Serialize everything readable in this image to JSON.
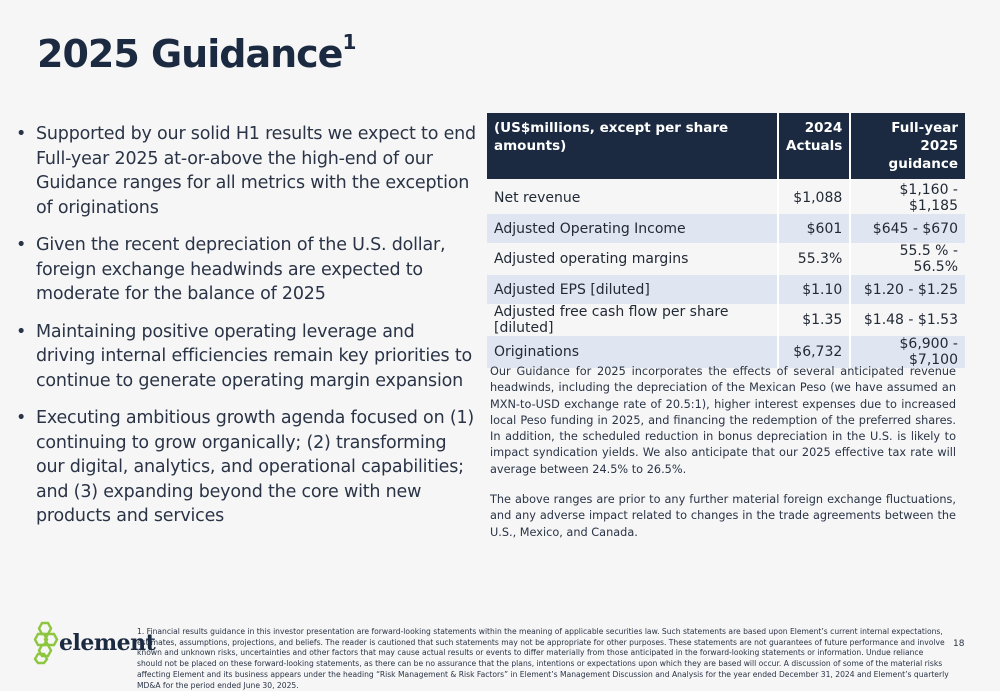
{
  "title": {
    "text": "2025 Guidance",
    "sup": "1"
  },
  "bullets": [
    "Supported by our solid H1 results we expect to end Full-year 2025 at-or-above the high-end of our Guidance ranges for all metrics with the exception of originations",
    "Given the recent depreciation of the U.S. dollar, foreign exchange headwinds are expected to moderate for the balance of 2025",
    "Maintaining positive operating leverage and driving internal efficiencies remain key priorities to continue to generate operating margin expansion",
    "Executing ambitious growth agenda focused on (1) continuing to grow organically; (2) transforming our digital, analytics, and operational capabilities; and (3) expanding beyond the core with new products and services"
  ],
  "bullet_glyph": "•",
  "table": {
    "headers": [
      "(US$millions, except per share amounts)",
      "2024 Actuals",
      "Full-year 2025 guidance"
    ],
    "rows": [
      [
        "Net revenue",
        "$1,088",
        "$1,160 - $1,185"
      ],
      [
        "Adjusted Operating Income",
        "$601",
        "$645 - $670"
      ],
      [
        "Adjusted operating margins",
        "55.3%",
        "55.5 % - 56.5%"
      ],
      [
        "Adjusted EPS [diluted]",
        "$1.10",
        "$1.20 - $1.25"
      ],
      [
        "Adjusted free cash flow per share [diluted]",
        "$1.35",
        "$1.48 - $1.53"
      ],
      [
        "Originations",
        "$6,732",
        "$6,900 - $7,100"
      ]
    ]
  },
  "notes": [
    "Our Guidance for 2025 incorporates the effects of several anticipated revenue headwinds, including the depreciation of the Mexican Peso (we have assumed an MXN-to-USD exchange rate of 20.5:1), higher interest expenses due to increased local Peso funding in 2025, and financing the redemption of the preferred shares. In addition, the scheduled reduction in bonus depreciation in the U.S. is likely to impact syndication yields. We also anticipate that our 2025 effective tax rate will average between 24.5% to 26.5%.",
    "The above ranges are prior to any further material foreign exchange fluctuations, and any adverse impact related to changes in the trade agreements between the U.S., Mexico, and Canada."
  ],
  "footer": {
    "logo_text": "element",
    "logo_color": "#8dc63f",
    "footnote": "1. Financial results guidance in this investor presentation are forward-looking statements within the meaning of applicable securities law. Such statements are based upon Element’s current internal expectations, estimates, assumptions, projections, and beliefs. The reader is cautioned that such statements may not be appropriate for other purposes. These statements are not guarantees of future performance and involve known and unknown risks, uncertainties and other factors that may cause actual results or events to differ materially from those anticipated in the forward-looking statements or information. Undue reliance should not be placed on these forward-looking statements, as there can be no assurance that the plans, intentions or expectations upon which they are based will occur.  A discussion of some of the material risks affecting Element and its business appears under the heading “Risk Management & Risk Factors” in Element’s Management Discussion and Analysis for the year ended December 31, 2024 and Element’s quarterly MD&A for the period ended June 30, 2025.",
    "page_number": "18"
  }
}
